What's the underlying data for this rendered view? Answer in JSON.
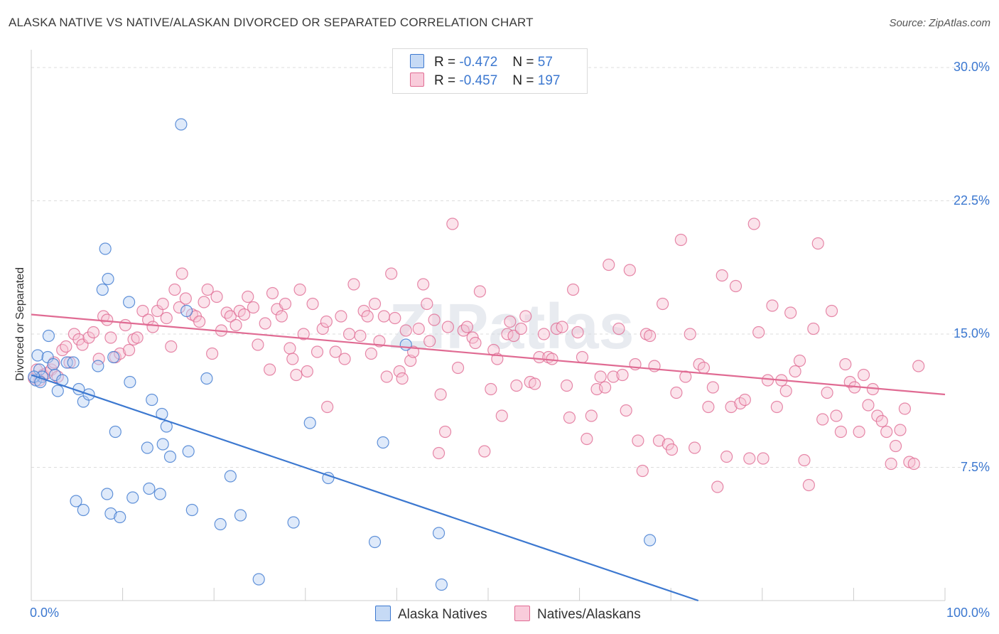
{
  "title": "ALASKA NATIVE VS NATIVE/ALASKAN DIVORCED OR SEPARATED CORRELATION CHART",
  "source": "Source: ZipAtlas.com",
  "watermark": "ZIPatlas",
  "colors": {
    "blue": "#3c78d0",
    "blue_fill": "#b7d0f3",
    "pink": "#e06b93",
    "pink_fill": "#f7c1d2",
    "grid": "#dddddd"
  },
  "legend": {
    "r_label": "R =",
    "n_label": "N =",
    "rows": [
      {
        "r": "-0.472",
        "n": "57"
      },
      {
        "r": "-0.457",
        "n": "197"
      }
    ]
  },
  "chart_data": {
    "type": "scatter",
    "title": "ALASKA NATIVE VS NATIVE/ALASKAN DIVORCED OR SEPARATED CORRELATION CHART",
    "xlabel": "",
    "ylabel": "Divorced or Separated",
    "xlim": [
      0,
      100
    ],
    "ylim": [
      0,
      31
    ],
    "x_tick_labels": [
      "0.0%",
      "100.0%"
    ],
    "y_ticks": [
      7.5,
      15.0,
      22.5,
      30.0
    ],
    "y_tick_labels": [
      "7.5%",
      "15.0%",
      "22.5%",
      "30.0%"
    ],
    "grid": true,
    "legend_position": "top-center",
    "series": [
      {
        "name": "Alaska Natives",
        "r": -0.472,
        "n": 57,
        "trend": {
          "x0": 0,
          "y0": 12.7,
          "x1": 73,
          "y1": 0
        },
        "points": [
          [
            0.5,
            12.4
          ],
          [
            0.7,
            13.8
          ],
          [
            0.9,
            13.0
          ],
          [
            1.2,
            12.6
          ],
          [
            1.8,
            13.7
          ],
          [
            1.9,
            14.9
          ],
          [
            2.4,
            13.3
          ],
          [
            2.6,
            12.7
          ],
          [
            2.9,
            11.8
          ],
          [
            3.4,
            12.4
          ],
          [
            3.9,
            13.4
          ],
          [
            4.6,
            13.4
          ],
          [
            5.2,
            11.9
          ],
          [
            5.7,
            11.2
          ],
          [
            6.3,
            11.6
          ],
          [
            4.9,
            5.6
          ],
          [
            5.7,
            5.1
          ],
          [
            7.3,
            13.2
          ],
          [
            7.8,
            17.5
          ],
          [
            8.1,
            19.8
          ],
          [
            8.3,
            6.0
          ],
          [
            8.4,
            18.1
          ],
          [
            8.7,
            4.9
          ],
          [
            9.0,
            13.7
          ],
          [
            9.2,
            9.5
          ],
          [
            9.7,
            4.7
          ],
          [
            10.7,
            16.8
          ],
          [
            10.8,
            12.3
          ],
          [
            11.1,
            5.8
          ],
          [
            12.7,
            8.6
          ],
          [
            12.9,
            6.3
          ],
          [
            13.2,
            11.3
          ],
          [
            14.1,
            6.0
          ],
          [
            14.3,
            10.5
          ],
          [
            14.4,
            8.8
          ],
          [
            14.8,
            9.8
          ],
          [
            15.2,
            8.1
          ],
          [
            16.4,
            26.8
          ],
          [
            17.0,
            16.3
          ],
          [
            17.2,
            8.4
          ],
          [
            17.6,
            5.1
          ],
          [
            19.2,
            12.5
          ],
          [
            20.7,
            4.3
          ],
          [
            21.8,
            7.0
          ],
          [
            22.9,
            4.8
          ],
          [
            24.9,
            1.2
          ],
          [
            28.7,
            4.4
          ],
          [
            30.5,
            10.0
          ],
          [
            32.5,
            6.9
          ],
          [
            37.6,
            3.3
          ],
          [
            38.5,
            8.9
          ],
          [
            41.0,
            14.4
          ],
          [
            44.6,
            3.8
          ],
          [
            44.9,
            0.9
          ],
          [
            67.7,
            3.4
          ],
          [
            0.3,
            12.6
          ],
          [
            1.0,
            12.3
          ]
        ]
      },
      {
        "name": "Natives/Alaskans",
        "r": -0.457,
        "n": 197,
        "trend": {
          "x0": 0,
          "y0": 16.1,
          "x1": 100,
          "y1": 11.6
        },
        "points": [
          [
            0.3,
            12.5
          ],
          [
            0.6,
            13.0
          ],
          [
            0.9,
            12.4
          ],
          [
            1.3,
            12.7
          ],
          [
            1.7,
            12.8
          ],
          [
            2.2,
            13.0
          ],
          [
            2.5,
            13.4
          ],
          [
            2.9,
            12.6
          ],
          [
            3.4,
            14.1
          ],
          [
            3.8,
            14.3
          ],
          [
            4.2,
            13.4
          ],
          [
            4.7,
            15.0
          ],
          [
            5.2,
            14.7
          ],
          [
            5.6,
            14.4
          ],
          [
            6.3,
            14.8
          ],
          [
            6.8,
            15.1
          ],
          [
            7.4,
            13.6
          ],
          [
            7.9,
            16.0
          ],
          [
            8.3,
            15.8
          ],
          [
            8.7,
            14.8
          ],
          [
            9.2,
            13.7
          ],
          [
            9.7,
            13.9
          ],
          [
            10.3,
            15.5
          ],
          [
            10.7,
            14.1
          ],
          [
            11.2,
            14.7
          ],
          [
            11.6,
            14.8
          ],
          [
            12.2,
            16.3
          ],
          [
            12.8,
            15.8
          ],
          [
            13.3,
            15.4
          ],
          [
            13.8,
            16.3
          ],
          [
            14.4,
            16.7
          ],
          [
            14.8,
            15.9
          ],
          [
            15.3,
            14.3
          ],
          [
            15.7,
            17.5
          ],
          [
            16.2,
            16.5
          ],
          [
            16.5,
            18.4
          ],
          [
            16.9,
            17.0
          ],
          [
            17.6,
            16.1
          ],
          [
            18.0,
            16.0
          ],
          [
            18.4,
            15.7
          ],
          [
            18.9,
            16.8
          ],
          [
            19.3,
            17.5
          ],
          [
            19.8,
            13.9
          ],
          [
            20.3,
            17.1
          ],
          [
            20.8,
            15.2
          ],
          [
            21.4,
            16.2
          ],
          [
            21.8,
            16.0
          ],
          [
            22.4,
            15.5
          ],
          [
            22.8,
            16.3
          ],
          [
            23.3,
            16.1
          ],
          [
            23.7,
            17.1
          ],
          [
            24.3,
            16.5
          ],
          [
            24.8,
            14.4
          ],
          [
            25.6,
            15.6
          ],
          [
            26.1,
            13.0
          ],
          [
            26.4,
            17.3
          ],
          [
            26.9,
            16.4
          ],
          [
            27.4,
            16.0
          ],
          [
            27.8,
            16.7
          ],
          [
            28.3,
            14.2
          ],
          [
            28.6,
            13.6
          ],
          [
            29.0,
            12.7
          ],
          [
            29.4,
            17.5
          ],
          [
            29.8,
            15.0
          ],
          [
            30.2,
            12.9
          ],
          [
            30.8,
            16.7
          ],
          [
            31.3,
            14.0
          ],
          [
            31.9,
            15.3
          ],
          [
            32.3,
            15.7
          ],
          [
            32.4,
            10.9
          ],
          [
            33.3,
            14.0
          ],
          [
            33.9,
            16.0
          ],
          [
            34.3,
            13.6
          ],
          [
            34.8,
            15.0
          ],
          [
            35.3,
            17.8
          ],
          [
            36.0,
            14.9
          ],
          [
            36.4,
            16.3
          ],
          [
            36.8,
            16.0
          ],
          [
            37.2,
            13.9
          ],
          [
            37.6,
            16.7
          ],
          [
            38.1,
            14.6
          ],
          [
            38.6,
            16.0
          ],
          [
            38.9,
            12.6
          ],
          [
            39.4,
            18.4
          ],
          [
            39.8,
            15.9
          ],
          [
            40.3,
            12.9
          ],
          [
            40.6,
            12.5
          ],
          [
            41.0,
            15.2
          ],
          [
            41.5,
            13.5
          ],
          [
            41.8,
            14.0
          ],
          [
            42.4,
            15.3
          ],
          [
            42.9,
            17.8
          ],
          [
            43.3,
            16.7
          ],
          [
            43.6,
            14.6
          ],
          [
            44.1,
            15.8
          ],
          [
            44.6,
            8.3
          ],
          [
            44.8,
            11.6
          ],
          [
            45.3,
            9.5
          ],
          [
            45.6,
            15.4
          ],
          [
            46.1,
            21.2
          ],
          [
            46.7,
            13.1
          ],
          [
            47.3,
            15.2
          ],
          [
            47.7,
            15.4
          ],
          [
            48.3,
            14.8
          ],
          [
            48.6,
            14.5
          ],
          [
            49.1,
            17.4
          ],
          [
            49.6,
            8.4
          ],
          [
            50.3,
            11.9
          ],
          [
            50.6,
            14.1
          ],
          [
            51.0,
            13.6
          ],
          [
            51.5,
            10.4
          ],
          [
            52.1,
            15.0
          ],
          [
            52.4,
            15.7
          ],
          [
            52.8,
            14.9
          ],
          [
            53.1,
            12.1
          ],
          [
            53.6,
            15.3
          ],
          [
            54.1,
            16.0
          ],
          [
            54.6,
            12.3
          ],
          [
            55.1,
            12.2
          ],
          [
            55.6,
            13.7
          ],
          [
            56.1,
            15.0
          ],
          [
            56.6,
            13.7
          ],
          [
            57.0,
            13.6
          ],
          [
            57.5,
            15.3
          ],
          [
            58.1,
            15.4
          ],
          [
            58.6,
            12.1
          ],
          [
            58.9,
            10.3
          ],
          [
            59.3,
            17.5
          ],
          [
            59.8,
            15.1
          ],
          [
            60.3,
            13.7
          ],
          [
            60.8,
            9.1
          ],
          [
            61.3,
            10.4
          ],
          [
            61.9,
            11.9
          ],
          [
            62.3,
            12.6
          ],
          [
            62.8,
            12.0
          ],
          [
            63.2,
            18.9
          ],
          [
            63.7,
            12.6
          ],
          [
            64.3,
            15.3
          ],
          [
            64.7,
            12.7
          ],
          [
            65.1,
            10.7
          ],
          [
            65.5,
            18.6
          ],
          [
            66.1,
            13.3
          ],
          [
            66.4,
            9.0
          ],
          [
            66.9,
            7.3
          ],
          [
            67.3,
            15.0
          ],
          [
            67.7,
            14.9
          ],
          [
            68.2,
            13.2
          ],
          [
            68.7,
            9.0
          ],
          [
            69.1,
            16.7
          ],
          [
            69.7,
            8.8
          ],
          [
            70.1,
            8.5
          ],
          [
            70.6,
            11.7
          ],
          [
            71.1,
            20.3
          ],
          [
            71.6,
            12.6
          ],
          [
            72.1,
            15.0
          ],
          [
            72.6,
            8.6
          ],
          [
            73.1,
            13.3
          ],
          [
            73.6,
            13.1
          ],
          [
            74.1,
            10.9
          ],
          [
            74.6,
            12.0
          ],
          [
            75.1,
            6.4
          ],
          [
            75.6,
            18.3
          ],
          [
            76.1,
            8.1
          ],
          [
            76.6,
            10.9
          ],
          [
            77.1,
            17.7
          ],
          [
            77.6,
            11.1
          ],
          [
            78.1,
            11.3
          ],
          [
            78.6,
            8.0
          ],
          [
            79.1,
            21.2
          ],
          [
            79.6,
            15.1
          ],
          [
            80.1,
            8.0
          ],
          [
            80.6,
            12.4
          ],
          [
            81.1,
            16.6
          ],
          [
            81.6,
            10.9
          ],
          [
            82.1,
            12.4
          ],
          [
            82.6,
            11.8
          ],
          [
            83.1,
            16.2
          ],
          [
            83.6,
            12.9
          ],
          [
            84.1,
            13.5
          ],
          [
            84.6,
            7.9
          ],
          [
            85.1,
            6.5
          ],
          [
            85.6,
            15.3
          ],
          [
            86.1,
            20.1
          ],
          [
            86.6,
            10.2
          ],
          [
            87.1,
            11.7
          ],
          [
            87.6,
            16.3
          ],
          [
            88.1,
            10.4
          ],
          [
            88.6,
            9.5
          ],
          [
            89.1,
            13.3
          ],
          [
            89.6,
            12.3
          ],
          [
            90.1,
            12.0
          ],
          [
            90.6,
            9.5
          ],
          [
            91.1,
            12.7
          ],
          [
            91.6,
            11.0
          ],
          [
            92.1,
            11.9
          ],
          [
            92.6,
            10.4
          ],
          [
            93.1,
            10.1
          ],
          [
            93.6,
            9.5
          ],
          [
            94.1,
            7.7
          ],
          [
            94.6,
            8.7
          ],
          [
            95.1,
            9.6
          ],
          [
            95.6,
            10.8
          ],
          [
            96.1,
            7.8
          ],
          [
            96.6,
            7.7
          ],
          [
            97.1,
            13.2
          ]
        ]
      }
    ]
  }
}
